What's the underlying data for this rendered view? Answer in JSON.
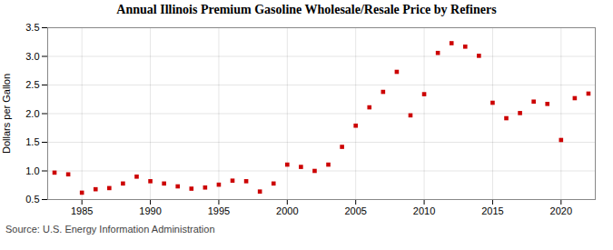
{
  "chart_data": {
    "type": "scatter",
    "title": "Annual Illinois Premium Gasoline Wholesale/Resale Price by Refiners",
    "ylabel": "Dollars per Gallon",
    "caption": "Source: U.S. Energy Information Administration",
    "x": [
      1983,
      1984,
      1985,
      1986,
      1987,
      1988,
      1989,
      1990,
      1991,
      1992,
      1993,
      1994,
      1995,
      1996,
      1997,
      1998,
      1999,
      2000,
      2001,
      2002,
      2003,
      2004,
      2005,
      2006,
      2007,
      2008,
      2009,
      2010,
      2011,
      2012,
      2013,
      2014,
      2015,
      2016,
      2017,
      2018,
      2019,
      2020,
      2021,
      2022
    ],
    "values": [
      0.97,
      0.94,
      0.62,
      0.68,
      0.7,
      0.78,
      0.9,
      0.82,
      0.78,
      0.73,
      0.69,
      0.71,
      0.76,
      0.83,
      0.82,
      0.64,
      0.78,
      1.11,
      1.07,
      1.0,
      1.11,
      1.42,
      1.79,
      2.11,
      2.38,
      2.73,
      1.97,
      2.34,
      3.06,
      3.23,
      3.17,
      3.01,
      2.19,
      1.92,
      2.01,
      2.21,
      2.17,
      1.54,
      2.27,
      2.35
    ],
    "color": "#cc0000",
    "marker": "square",
    "xlim": [
      1982.5,
      2022.5
    ],
    "ylim": [
      0.5,
      3.5
    ],
    "xticks": [
      1985,
      1990,
      1995,
      2000,
      2005,
      2010,
      2015,
      2020
    ],
    "yticks": [
      0.5,
      {
        "value": 1.0,
        "label": "1.0"
      },
      1.5,
      {
        "value": 2.0,
        "label": "2.0"
      },
      2.5,
      {
        "value": 3.0,
        "label": "3.0"
      },
      3.5
    ],
    "grid": true
  }
}
